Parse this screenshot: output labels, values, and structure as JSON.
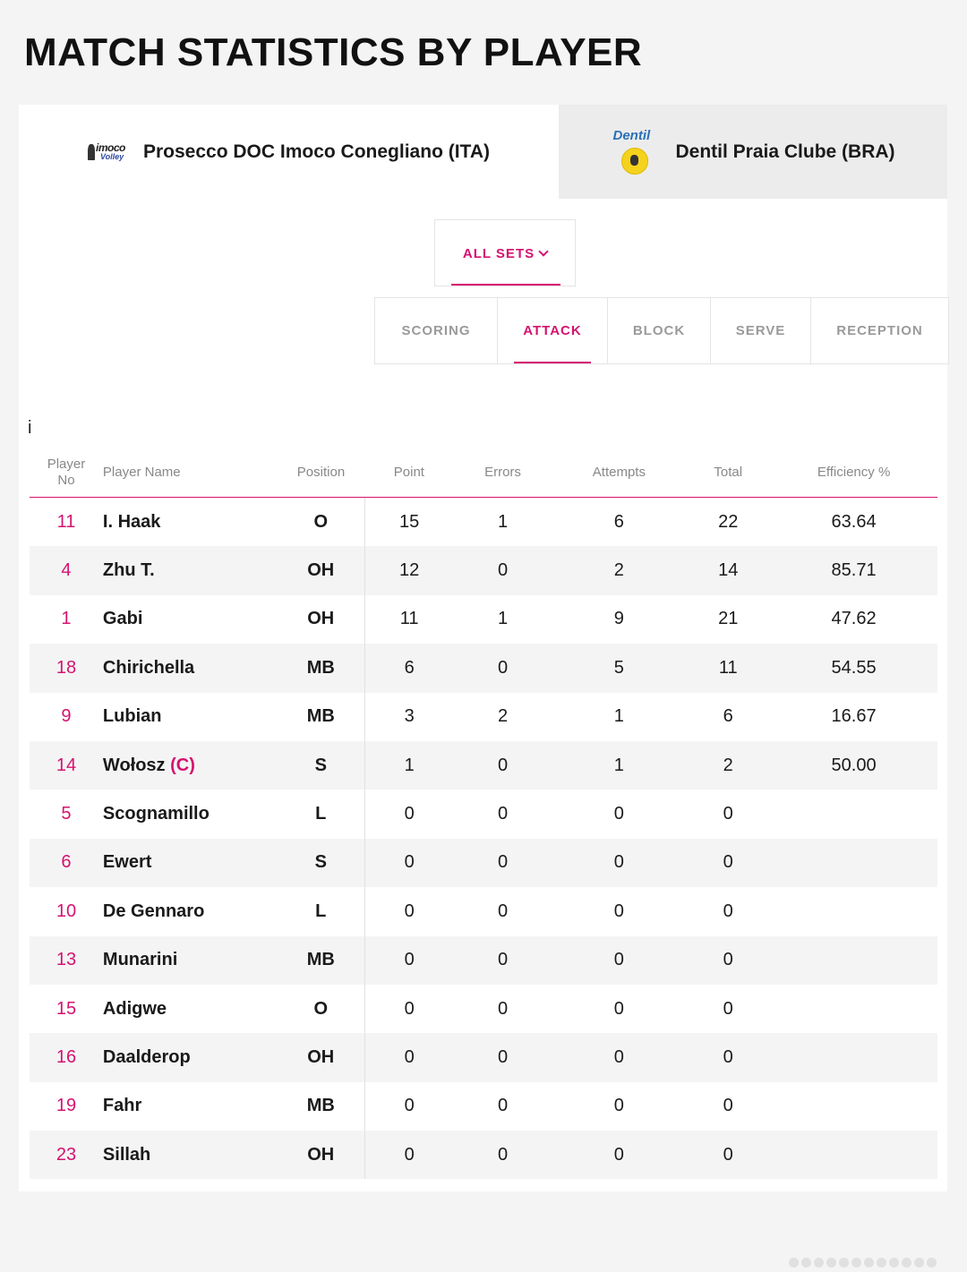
{
  "page_title": "MATCH STATISTICS BY PLAYER",
  "teams": [
    {
      "name": "Prosecco DOC Imoco Conegliano (ITA)",
      "logo_text": "imoco",
      "logo_sub": "Volley",
      "active": true
    },
    {
      "name": "Dentil Praia Clube (BRA)",
      "logo_text": "Dentil",
      "active": false
    }
  ],
  "sets_select": {
    "label": "ALL SETS"
  },
  "stat_tabs": [
    {
      "label": "SCORING",
      "active": false
    },
    {
      "label": "ATTACK",
      "active": true
    },
    {
      "label": "BLOCK",
      "active": false
    },
    {
      "label": "SERVE",
      "active": false
    },
    {
      "label": "RECEPTION",
      "active": false
    }
  ],
  "info_icon": "i",
  "table": {
    "headers": {
      "player_no_1": "Player",
      "player_no_2": "No",
      "player_name": "Player Name",
      "position": "Position",
      "point": "Point",
      "errors": "Errors",
      "attempts": "Attempts",
      "total": "Total",
      "efficiency": "Efficiency %"
    },
    "rows": [
      {
        "no": "11",
        "name": "I. Haak",
        "captain": "",
        "pos": "O",
        "point": "15",
        "errors": "1",
        "attempts": "6",
        "total": "22",
        "eff": "63.64"
      },
      {
        "no": "4",
        "name": "Zhu T.",
        "captain": "",
        "pos": "OH",
        "point": "12",
        "errors": "0",
        "attempts": "2",
        "total": "14",
        "eff": "85.71"
      },
      {
        "no": "1",
        "name": "Gabi",
        "captain": "",
        "pos": "OH",
        "point": "11",
        "errors": "1",
        "attempts": "9",
        "total": "21",
        "eff": "47.62"
      },
      {
        "no": "18",
        "name": "Chirichella",
        "captain": "",
        "pos": "MB",
        "point": "6",
        "errors": "0",
        "attempts": "5",
        "total": "11",
        "eff": "54.55"
      },
      {
        "no": "9",
        "name": "Lubian",
        "captain": "",
        "pos": "MB",
        "point": "3",
        "errors": "2",
        "attempts": "1",
        "total": "6",
        "eff": "16.67"
      },
      {
        "no": "14",
        "name": "Wołosz",
        "captain": "(C)",
        "pos": "S",
        "point": "1",
        "errors": "0",
        "attempts": "1",
        "total": "2",
        "eff": "50.00"
      },
      {
        "no": "5",
        "name": "Scognamillo",
        "captain": "",
        "pos": "L",
        "point": "0",
        "errors": "0",
        "attempts": "0",
        "total": "0",
        "eff": ""
      },
      {
        "no": "6",
        "name": "Ewert",
        "captain": "",
        "pos": "S",
        "point": "0",
        "errors": "0",
        "attempts": "0",
        "total": "0",
        "eff": ""
      },
      {
        "no": "10",
        "name": "De Gennaro",
        "captain": "",
        "pos": "L",
        "point": "0",
        "errors": "0",
        "attempts": "0",
        "total": "0",
        "eff": ""
      },
      {
        "no": "13",
        "name": "Munarini",
        "captain": "",
        "pos": "MB",
        "point": "0",
        "errors": "0",
        "attempts": "0",
        "total": "0",
        "eff": ""
      },
      {
        "no": "15",
        "name": "Adigwe",
        "captain": "",
        "pos": "O",
        "point": "0",
        "errors": "0",
        "attempts": "0",
        "total": "0",
        "eff": ""
      },
      {
        "no": "16",
        "name": "Daalderop",
        "captain": "",
        "pos": "OH",
        "point": "0",
        "errors": "0",
        "attempts": "0",
        "total": "0",
        "eff": ""
      },
      {
        "no": "19",
        "name": "Fahr",
        "captain": "",
        "pos": "MB",
        "point": "0",
        "errors": "0",
        "attempts": "0",
        "total": "0",
        "eff": ""
      },
      {
        "no": "23",
        "name": "Sillah",
        "captain": "",
        "pos": "OH",
        "point": "0",
        "errors": "0",
        "attempts": "0",
        "total": "0",
        "eff": ""
      }
    ]
  },
  "colors": {
    "accent": "#d5126f",
    "inactive_tab_bg": "#ececec",
    "stripe": "#f4f4f4"
  }
}
